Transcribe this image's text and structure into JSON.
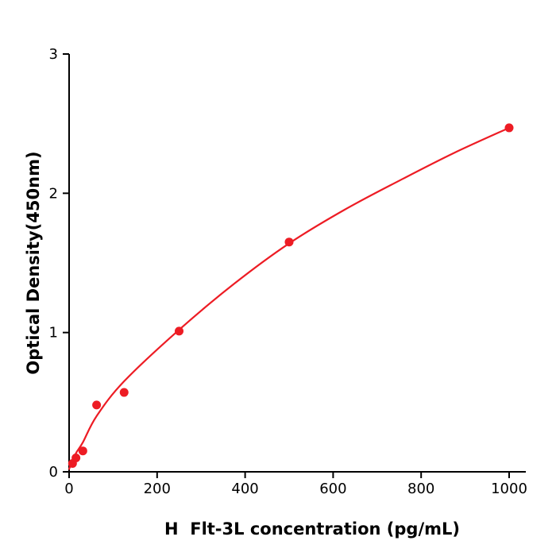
{
  "page": {
    "background": "#ffffff"
  },
  "chart_data": {
    "type": "scatter",
    "title": "",
    "xlabel": "H  Flt-3L concentration (pg/mL)",
    "ylabel": "Optical Density(450nm)",
    "xlim": [
      0,
      1000
    ],
    "ylim": [
      0,
      3
    ],
    "x_ticks": [
      0,
      200,
      400,
      600,
      800,
      1000
    ],
    "y_ticks": [
      0,
      1,
      2,
      3
    ],
    "grid": false,
    "legend": "none",
    "axis_color": "#000000",
    "point_color": "#ed1c24",
    "line_color": "#ed1c24",
    "points": [
      {
        "x": 7.8,
        "y": 0.06
      },
      {
        "x": 15.6,
        "y": 0.1
      },
      {
        "x": 31.25,
        "y": 0.15
      },
      {
        "x": 62.5,
        "y": 0.48
      },
      {
        "x": 125,
        "y": 0.57
      },
      {
        "x": 250,
        "y": 1.01
      },
      {
        "x": 500,
        "y": 1.65
      },
      {
        "x": 1000,
        "y": 2.47
      }
    ],
    "fit_curve": [
      [
        0,
        0.02
      ],
      [
        15,
        0.13
      ],
      [
        31,
        0.21
      ],
      [
        62.5,
        0.4
      ],
      [
        125,
        0.65
      ],
      [
        250,
        1.02
      ],
      [
        375,
        1.35
      ],
      [
        500,
        1.64
      ],
      [
        625,
        1.88
      ],
      [
        750,
        2.09
      ],
      [
        875,
        2.29
      ],
      [
        1000,
        2.47
      ]
    ]
  }
}
